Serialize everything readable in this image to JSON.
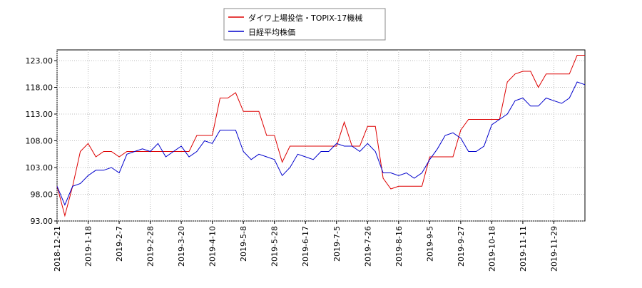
{
  "chart_data": {
    "type": "line",
    "categories": [
      "2018-12-21",
      null,
      null,
      null,
      "2019-1-18",
      null,
      null,
      null,
      "2019-2-7",
      null,
      null,
      null,
      "2019-2-28",
      null,
      null,
      null,
      "2019-3-20",
      null,
      null,
      null,
      "2019-4-10",
      null,
      null,
      null,
      "2019-5-8",
      null,
      null,
      null,
      "2019-5-28",
      null,
      null,
      null,
      "2019-6-17",
      null,
      null,
      null,
      "2019-7-5",
      null,
      null,
      null,
      "2019-7-26",
      null,
      null,
      null,
      "2019-8-16",
      null,
      null,
      null,
      "2019-9-5",
      null,
      null,
      null,
      "2019-9-27",
      null,
      null,
      null,
      "2019-10-18",
      null,
      null,
      null,
      "2019-11-11",
      null,
      null,
      null,
      "2019-11-29",
      null,
      null,
      null,
      null
    ],
    "series": [
      {
        "name": "ダイワ上場投信・TOPIX-17機械",
        "color": "#dd0000",
        "values": [
          99.5,
          94,
          99.5,
          106,
          107.5,
          105,
          106,
          106,
          105,
          106,
          106,
          106,
          106,
          106,
          106,
          106,
          106,
          106,
          109,
          109,
          109,
          116,
          116,
          117,
          113.5,
          113.5,
          113.5,
          109,
          109,
          104,
          107,
          107,
          107,
          107,
          107,
          107,
          107,
          111.5,
          107,
          107,
          110.7,
          110.7,
          101,
          99,
          99.5,
          99.5,
          99.5,
          99.5,
          105,
          105,
          105,
          105,
          110,
          112,
          112,
          112,
          112,
          112,
          119,
          120.5,
          121,
          121,
          118,
          120.5,
          120.5,
          120.5,
          120.5,
          124,
          124
        ]
      },
      {
        "name": "日経平均株価",
        "color": "#0000cc",
        "values": [
          99.5,
          96,
          99.5,
          100,
          101.5,
          102.5,
          102.5,
          103,
          102,
          105.5,
          106,
          106.5,
          106,
          107.5,
          105,
          106,
          107,
          105,
          106,
          108,
          107.5,
          110,
          110,
          110,
          106,
          104.5,
          105.5,
          105,
          104.5,
          101.5,
          103,
          105.5,
          105,
          104.5,
          106,
          106,
          107.5,
          107,
          107,
          106,
          107.5,
          106,
          102,
          102,
          101.5,
          102,
          101,
          102,
          104.5,
          106.5,
          109,
          109.5,
          108.5,
          106,
          106,
          107,
          111,
          112,
          113,
          115.5,
          116,
          114.5,
          114.5,
          116,
          115.5,
          115,
          116,
          119,
          118.5
        ]
      }
    ],
    "ylim": [
      93,
      125
    ],
    "yticks": [
      {
        "value": 93,
        "label": "93.00"
      },
      {
        "value": 98,
        "label": "98.00"
      },
      {
        "value": 103,
        "label": "103.00"
      },
      {
        "value": 108,
        "label": "108.00"
      },
      {
        "value": 113,
        "label": "113.00"
      },
      {
        "value": 118,
        "label": "118.00"
      },
      {
        "value": 123,
        "label": "123.00"
      }
    ],
    "grid": true
  }
}
